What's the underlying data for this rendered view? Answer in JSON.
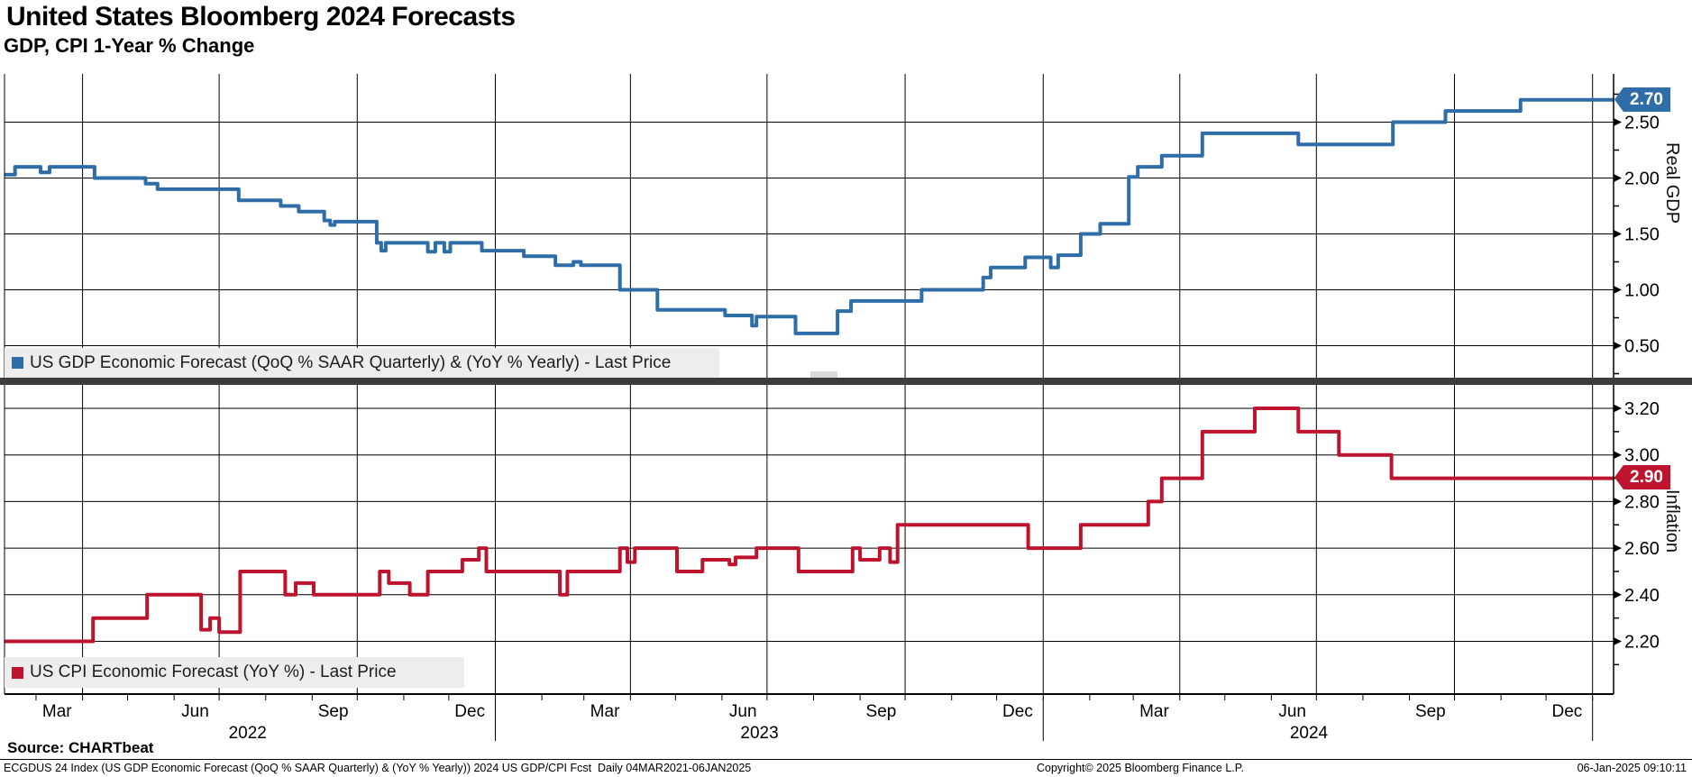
{
  "header": {
    "title": "United States Bloomberg 2024 Forecasts",
    "subtitle": "GDP, CPI 1-Year % Change"
  },
  "chart_data": {
    "type": "line",
    "step": true,
    "grid": true,
    "x_domain": [
      "2022-02-08",
      "2025-01-15"
    ],
    "x_axis": {
      "quarter_labels": [
        {
          "label": "Mar",
          "date": "2022-03-15"
        },
        {
          "label": "Jun",
          "date": "2022-06-15"
        },
        {
          "label": "Sep",
          "date": "2022-09-15"
        },
        {
          "label": "Dec",
          "date": "2022-12-15"
        },
        {
          "label": "Mar",
          "date": "2023-03-15"
        },
        {
          "label": "Jun",
          "date": "2023-06-15"
        },
        {
          "label": "Sep",
          "date": "2023-09-15"
        },
        {
          "label": "Dec",
          "date": "2023-12-15"
        },
        {
          "label": "Mar",
          "date": "2024-03-15"
        },
        {
          "label": "Jun",
          "date": "2024-06-15"
        },
        {
          "label": "Sep",
          "date": "2024-09-15"
        },
        {
          "label": "Dec",
          "date": "2024-12-15"
        }
      ],
      "year_labels": [
        {
          "label": "2022",
          "date": "2022-07-20"
        },
        {
          "label": "2023",
          "date": "2023-06-26"
        },
        {
          "label": "2024",
          "date": "2024-06-26"
        }
      ],
      "year_separators": [
        "2023-01-01",
        "2024-01-01",
        "2025-01-01"
      ],
      "vertical_gridlines": [
        "2022-04-01",
        "2022-07-01",
        "2022-10-01",
        "2023-01-01",
        "2023-04-01",
        "2023-07-01",
        "2023-10-01",
        "2024-01-01",
        "2024-04-01",
        "2024-07-01",
        "2024-10-01",
        "2025-01-01"
      ]
    },
    "panels": [
      {
        "id": "gdp",
        "axis_title": "Real GDP",
        "legend": "US GDP Economic Forecast (QoQ % SAAR Quarterly) & (YoY % Yearly) - Last Price",
        "color": "#2F6DA8",
        "last_price": "2.70",
        "ylim": [
          0.22,
          2.93
        ],
        "y_ticks": [
          2.5,
          2.0,
          1.5,
          1.0,
          0.5
        ],
        "y_minor_ticks": [
          2.75,
          2.25,
          1.75,
          1.25,
          0.75,
          0.25
        ],
        "points": [
          [
            "2022-02-10",
            2.03
          ],
          [
            "2022-02-15",
            2.1
          ],
          [
            "2022-03-04",
            2.05
          ],
          [
            "2022-03-10",
            2.1
          ],
          [
            "2022-04-09",
            2.0
          ],
          [
            "2022-05-13",
            1.95
          ],
          [
            "2022-05-21",
            1.9
          ],
          [
            "2022-07-14",
            1.8
          ],
          [
            "2022-08-11",
            1.75
          ],
          [
            "2022-08-23",
            1.7
          ],
          [
            "2022-09-09",
            1.62
          ],
          [
            "2022-09-13",
            1.58
          ],
          [
            "2022-09-16",
            1.61
          ],
          [
            "2022-10-14",
            1.42
          ],
          [
            "2022-10-17",
            1.35
          ],
          [
            "2022-10-20",
            1.42
          ],
          [
            "2022-11-17",
            1.34
          ],
          [
            "2022-11-22",
            1.42
          ],
          [
            "2022-11-28",
            1.34
          ],
          [
            "2022-12-02",
            1.42
          ],
          [
            "2022-12-23",
            1.35
          ],
          [
            "2023-01-20",
            1.3
          ],
          [
            "2023-02-10",
            1.22
          ],
          [
            "2023-02-22",
            1.25
          ],
          [
            "2023-02-27",
            1.22
          ],
          [
            "2023-03-25",
            1.0
          ],
          [
            "2023-04-19",
            0.82
          ],
          [
            "2023-06-03",
            0.77
          ],
          [
            "2023-06-21",
            0.68
          ],
          [
            "2023-06-24",
            0.76
          ],
          [
            "2023-07-20",
            0.61
          ],
          [
            "2023-08-17",
            0.81
          ],
          [
            "2023-08-26",
            0.9
          ],
          [
            "2023-10-12",
            1.0
          ],
          [
            "2023-11-22",
            1.11
          ],
          [
            "2023-11-27",
            1.2
          ],
          [
            "2023-12-20",
            1.29
          ],
          [
            "2024-01-06",
            1.2
          ],
          [
            "2024-01-11",
            1.31
          ],
          [
            "2024-01-26",
            1.5
          ],
          [
            "2024-02-08",
            1.59
          ],
          [
            "2024-02-27",
            2.01
          ],
          [
            "2024-03-04",
            2.1
          ],
          [
            "2024-03-20",
            2.2
          ],
          [
            "2024-04-16",
            2.4
          ],
          [
            "2024-06-19",
            2.3
          ],
          [
            "2024-08-21",
            2.5
          ],
          [
            "2024-09-25",
            2.6
          ],
          [
            "2024-11-14",
            2.7
          ]
        ]
      },
      {
        "id": "cpi",
        "axis_title": "Inflation",
        "legend": "US CPI Economic Forecast (YoY %) - Last Price",
        "color": "#BE132D",
        "last_price": "2.90",
        "ylim": [
          1.97,
          3.3
        ],
        "y_ticks": [
          3.2,
          3.0,
          2.8,
          2.6,
          2.4,
          2.2
        ],
        "y_minor_ticks": [
          3.1,
          2.9,
          2.7,
          2.5,
          2.3,
          2.1
        ],
        "points": [
          [
            "2022-02-10",
            2.2
          ],
          [
            "2022-04-08",
            2.3
          ],
          [
            "2022-05-14",
            2.4
          ],
          [
            "2022-06-19",
            2.25
          ],
          [
            "2022-06-25",
            2.3
          ],
          [
            "2022-07-01",
            2.24
          ],
          [
            "2022-07-15",
            2.5
          ],
          [
            "2022-08-14",
            2.4
          ],
          [
            "2022-08-21",
            2.45
          ],
          [
            "2022-09-02",
            2.4
          ],
          [
            "2022-10-16",
            2.5
          ],
          [
            "2022-10-22",
            2.45
          ],
          [
            "2022-11-05",
            2.4
          ],
          [
            "2022-11-17",
            2.5
          ],
          [
            "2022-12-10",
            2.55
          ],
          [
            "2022-12-21",
            2.6
          ],
          [
            "2022-12-26",
            2.5
          ],
          [
            "2023-02-13",
            2.4
          ],
          [
            "2023-02-18",
            2.5
          ],
          [
            "2023-03-25",
            2.6
          ],
          [
            "2023-03-30",
            2.54
          ],
          [
            "2023-04-04",
            2.6
          ],
          [
            "2023-05-02",
            2.5
          ],
          [
            "2023-05-19",
            2.55
          ],
          [
            "2023-06-06",
            2.53
          ],
          [
            "2023-06-10",
            2.56
          ],
          [
            "2023-06-24",
            2.6
          ],
          [
            "2023-07-22",
            2.5
          ],
          [
            "2023-08-27",
            2.6
          ],
          [
            "2023-09-01",
            2.55
          ],
          [
            "2023-09-14",
            2.6
          ],
          [
            "2023-09-21",
            2.54
          ],
          [
            "2023-09-26",
            2.7
          ],
          [
            "2023-12-22",
            2.6
          ],
          [
            "2024-01-26",
            2.7
          ],
          [
            "2024-03-11",
            2.8
          ],
          [
            "2024-03-20",
            2.9
          ],
          [
            "2024-04-16",
            3.1
          ],
          [
            "2024-05-21",
            3.2
          ],
          [
            "2024-06-19",
            3.1
          ],
          [
            "2024-07-16",
            3.0
          ],
          [
            "2024-08-20",
            2.9
          ]
        ]
      }
    ]
  },
  "footer": {
    "source": "Source: CHARTbeat",
    "left": "ECGDUS 24 Index (US GDP Economic Forecast (QoQ % SAAR Quarterly) & (YoY % Yearly)) 2024 US GDP/CPI Fcst  Daily 04MAR2021-06JAN2025",
    "center": "Copyright© 2025 Bloomberg Finance L.P.",
    "right": "06-Jan-2025 09:10:11"
  }
}
